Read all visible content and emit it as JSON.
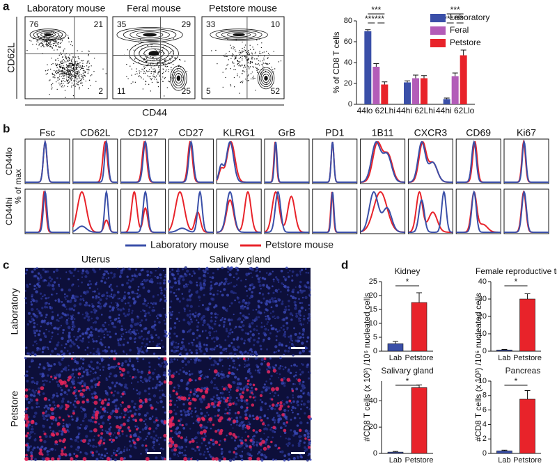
{
  "panel_labels": [
    "a",
    "b",
    "c",
    "d"
  ],
  "flow_plots": {
    "y_label": "CD62L",
    "x_label": "CD44",
    "plots": [
      {
        "title": "Laboratory mouse",
        "top_left": 76,
        "top_right": 21,
        "bottom_right": 2
      },
      {
        "title": "Feral mouse",
        "top_left": 35,
        "top_right": 29,
        "bottom_left": 11,
        "bottom_right": 25
      },
      {
        "title": "Petstore mouse",
        "top_left": 33,
        "top_right": 10,
        "bottom_left": 5,
        "bottom_right": 52
      }
    ]
  },
  "histograms": {
    "markers": [
      "Fsc",
      "CD62L",
      "CD127",
      "CD27",
      "KLRG1",
      "GrB",
      "PD1",
      "1B11",
      "CXCR3",
      "CD69",
      "Ki67"
    ],
    "rows": [
      "CD44lo",
      "CD44hi"
    ],
    "y_label": "% of max",
    "legend": [
      {
        "name": "Laboratory mouse",
        "color": "#3a4fa8"
      },
      {
        "name": "Petstore mouse",
        "color": "#e8232a"
      }
    ]
  },
  "micrographs": {
    "columns": [
      "Uterus",
      "Salivary gland"
    ],
    "rows": [
      "Laboratory",
      "Petstore"
    ]
  },
  "d_y_label": "#CD8 T cells (x 10³) /10⁶ nucleated cells",
  "chart_data": [
    {
      "type": "bar",
      "y_label": "% of CD8 T cells",
      "categories": [
        "44lo 62Lhi",
        "44hi 62Lhi",
        "44hi 62Llo"
      ],
      "series": [
        {
          "name": "Laboratory",
          "color": "#3a4fa8",
          "values": [
            70,
            21,
            5
          ],
          "errors": [
            1.5,
            1.5,
            1
          ]
        },
        {
          "name": "Feral",
          "color": "#b35cb8",
          "values": [
            36,
            25,
            27
          ],
          "errors": [
            3,
            3,
            3
          ]
        },
        {
          "name": "Petstore",
          "color": "#e8232a",
          "values": [
            19,
            25,
            47
          ],
          "errors": [
            2.5,
            2.5,
            5
          ]
        }
      ],
      "ylim": [
        0,
        80
      ],
      "yticks": [
        0,
        20,
        40,
        60,
        80
      ],
      "significance": [
        [
          "***",
          "****",
          "**"
        ],
        null,
        [
          "***",
          "****",
          "**"
        ]
      ]
    },
    {
      "type": "bar",
      "title": "Kidney",
      "categories": [
        "Lab",
        "Petstore"
      ],
      "values": [
        2.7,
        17.5
      ],
      "errors": [
        0.8,
        3.5
      ],
      "colors": [
        "#3a4fa8",
        "#e8232a"
      ],
      "ylim": [
        0,
        25
      ],
      "yticks": [
        0,
        5,
        10,
        15,
        20,
        25
      ],
      "significance": "*"
    },
    {
      "type": "bar",
      "title": "Female reproductive tract",
      "categories": [
        "Lab",
        "Petstore"
      ],
      "values": [
        0.7,
        30
      ],
      "errors": [
        0.3,
        3
      ],
      "colors": [
        "#3a4fa8",
        "#e8232a"
      ],
      "ylim": [
        0,
        40
      ],
      "yticks": [
        0,
        10,
        20,
        30,
        40
      ],
      "significance": "*"
    },
    {
      "type": "bar",
      "title": "Salivary gland",
      "categories": [
        "Lab",
        "Petstore"
      ],
      "values": [
        1,
        50
      ],
      "errors": [
        0.5,
        2
      ],
      "colors": [
        "#3a4fa8",
        "#e8232a"
      ],
      "ylim": [
        0,
        55
      ],
      "yticks": [
        0,
        20,
        40
      ],
      "significance": "*"
    },
    {
      "type": "bar",
      "title": "Pancreas",
      "categories": [
        "Lab",
        "Petstore"
      ],
      "values": [
        0.35,
        7.5
      ],
      "errors": [
        0.1,
        1.2
      ],
      "colors": [
        "#3a4fa8",
        "#e8232a"
      ],
      "ylim": [
        0,
        10
      ],
      "yticks": [
        0,
        2,
        4,
        6,
        8,
        10
      ],
      "significance": "*"
    }
  ]
}
